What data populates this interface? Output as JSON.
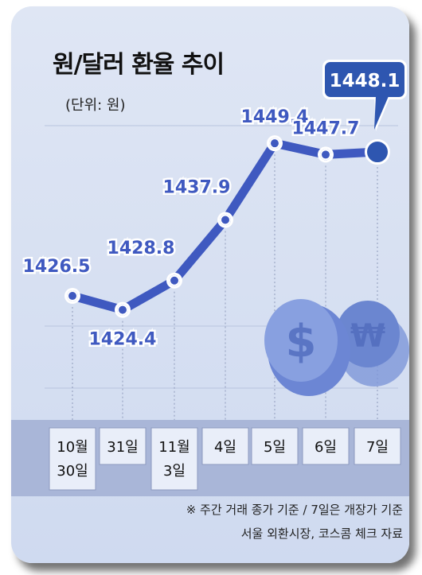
{
  "title": "원/달러 환율 추이",
  "unit": "(단위: 원)",
  "notes": {
    "line1": "※ 주간 거래 종가 기준 / 7일은 개장가 기준",
    "line2": "서울 외환시장, 코스콤 체크 자료"
  },
  "colors": {
    "background": "#d4ddf1",
    "line": "#3f59c0",
    "label": "#3f59c0",
    "callout": "#2e56b0",
    "axis_cells": "#e9eef9"
  },
  "chart_data": {
    "type": "line",
    "categories": [
      "10월 30일",
      "31일",
      "11월 3일",
      "4일",
      "5일",
      "6일",
      "7일"
    ],
    "category_lines": [
      [
        "10월",
        "30일"
      ],
      [
        "31일"
      ],
      [
        "11월",
        "3일"
      ],
      [
        "4일"
      ],
      [
        "5일"
      ],
      [
        "6일"
      ],
      [
        "7일"
      ]
    ],
    "values": [
      1426.5,
      1424.4,
      1428.8,
      1437.9,
      1449.4,
      1447.7,
      1448.1
    ],
    "labels": [
      "1426.5",
      "1424.4",
      "1428.8",
      "1437.9",
      "1449.4",
      "1447.7",
      "1448.1"
    ],
    "highlight_index": 6,
    "ylim": [
      1416,
      1453
    ]
  }
}
